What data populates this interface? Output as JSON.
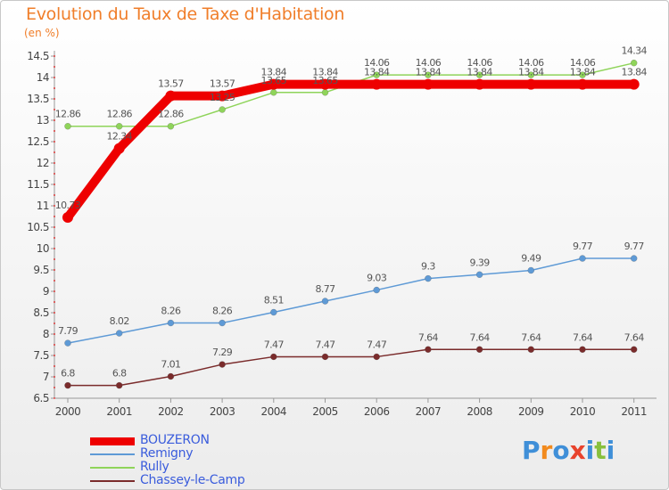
{
  "title": "Evolution du Taux de Taxe d'Habitation",
  "unit": "(en %)",
  "logo": {
    "letters": [
      "P",
      "r",
      "o",
      "x",
      "i",
      "t",
      "i"
    ],
    "colors": [
      "#3f8fd8",
      "#f28a1d",
      "#3f8fd8",
      "#e8432c",
      "#3f8fd8",
      "#88c03e",
      "#3f8fd8"
    ]
  },
  "chart_data": {
    "type": "line",
    "x": [
      "2000",
      "2001",
      "2002",
      "2003",
      "2004",
      "2005",
      "2006",
      "2007",
      "2008",
      "2009",
      "2010",
      "2011"
    ],
    "ylim": [
      6.5,
      14.5
    ],
    "yticks": [
      "6.5",
      "7",
      "7.5",
      "8",
      "8.5",
      "9",
      "9.5",
      "10",
      "10.5",
      "11",
      "11.5",
      "12",
      "12.5",
      "13",
      "13.5",
      "14",
      "14.5"
    ],
    "grid": false,
    "legend_position": "bottom-left",
    "series": [
      {
        "name": "BOUZERON",
        "color": "#ee0000",
        "width": 10,
        "values": [
          10.73,
          12.34,
          13.57,
          13.57,
          13.84,
          13.84,
          13.84,
          13.84,
          13.84,
          13.84,
          13.84,
          13.84
        ],
        "labels": [
          "10.73",
          "12.34",
          "13.57",
          "13.57",
          "13.84",
          "13.84",
          "13.84",
          "13.84",
          "13.84",
          "13.84",
          "13.84",
          "13.84"
        ]
      },
      {
        "name": "Remigny",
        "color": "#5e9ad6",
        "width": 1.5,
        "values": [
          7.79,
          8.02,
          8.26,
          8.26,
          8.51,
          8.77,
          9.03,
          9.3,
          9.39,
          9.49,
          9.77,
          9.77
        ],
        "labels": [
          "7.79",
          "8.02",
          "8.26",
          "8.26",
          "8.51",
          "8.77",
          "9.03",
          "9.3",
          "9.39",
          "9.49",
          "9.77",
          "9.77"
        ]
      },
      {
        "name": "Rully",
        "color": "#8fd45a",
        "width": 1.5,
        "values": [
          12.86,
          12.86,
          12.86,
          13.25,
          13.65,
          13.65,
          14.06,
          14.06,
          14.06,
          14.06,
          14.06,
          14.34
        ],
        "labels": [
          "12.86",
          "12.86",
          "12.86",
          "13.25",
          "13.65",
          "13.65",
          "14.06",
          "14.06",
          "14.06",
          "14.06",
          "14.06",
          "14.34"
        ]
      },
      {
        "name": "Chassey-le-Camp",
        "color": "#7a2b2b",
        "width": 1.5,
        "values": [
          6.8,
          6.8,
          7.01,
          7.29,
          7.47,
          7.47,
          7.47,
          7.64,
          7.64,
          7.64,
          7.64,
          7.64
        ],
        "labels": [
          "6.8",
          "6.8",
          "7.01",
          "7.29",
          "7.47",
          "7.47",
          "7.47",
          "7.64",
          "7.64",
          "7.64",
          "7.64",
          "7.64"
        ]
      }
    ]
  }
}
